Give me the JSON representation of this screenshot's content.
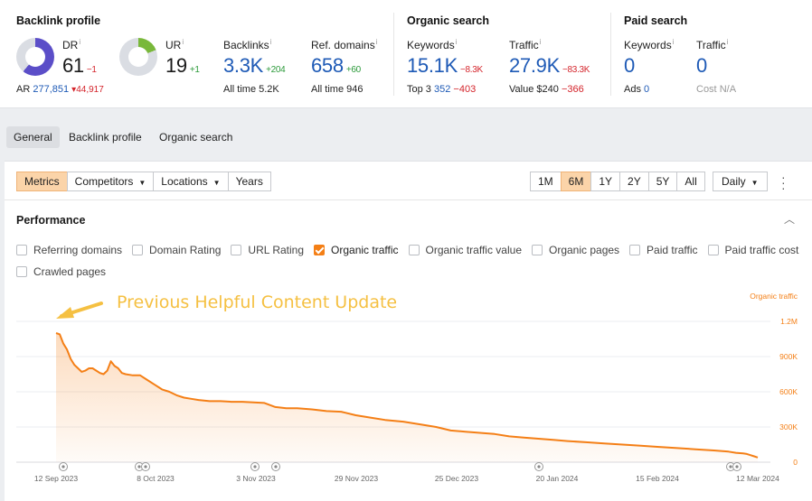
{
  "backlink_profile": {
    "title": "Backlink profile",
    "dr": {
      "label": "DR",
      "value": "61",
      "delta": "−1",
      "fill": 0.61
    },
    "ur": {
      "label": "UR",
      "value": "19",
      "delta": "+1",
      "fill": 0.19
    },
    "ar": {
      "label": "AR",
      "value": "277,851",
      "delta": "▾44,917"
    },
    "backlinks": {
      "label": "Backlinks",
      "value": "3.3K",
      "delta": "+204",
      "sub_label": "All time",
      "sub_value": "5.2K"
    },
    "ref_domains": {
      "label": "Ref. domains",
      "value": "658",
      "delta": "+60",
      "sub_label": "All time",
      "sub_value": "946"
    }
  },
  "organic_search": {
    "title": "Organic search",
    "keywords": {
      "label": "Keywords",
      "value": "15.1K",
      "delta": "−8.3K",
      "sub_label": "Top 3",
      "sub_value": "352",
      "sub_delta": "−403"
    },
    "traffic": {
      "label": "Traffic",
      "value": "27.9K",
      "delta": "−83.3K",
      "sub_label": "Value",
      "sub_value": "$240",
      "sub_delta": "−366"
    }
  },
  "paid_search": {
    "title": "Paid search",
    "keywords": {
      "label": "Keywords",
      "value": "0",
      "sub_label": "Ads",
      "sub_value": "0"
    },
    "traffic": {
      "label": "Traffic",
      "value": "0",
      "sub_label": "Cost",
      "sub_value": "N/A"
    }
  },
  "tabs": [
    "General",
    "Backlink profile",
    "Organic search"
  ],
  "toolbar": {
    "left": [
      "Metrics",
      "Competitors",
      "Locations",
      "Years"
    ],
    "ranges": [
      "1M",
      "6M",
      "1Y",
      "2Y",
      "5Y",
      "All"
    ],
    "interval": "Daily"
  },
  "performance": {
    "title": "Performance",
    "checkboxes": [
      {
        "label": "Referring domains",
        "checked": false
      },
      {
        "label": "Domain Rating",
        "checked": false
      },
      {
        "label": "URL Rating",
        "checked": false
      },
      {
        "label": "Organic traffic",
        "checked": true
      },
      {
        "label": "Organic traffic value",
        "checked": false
      },
      {
        "label": "Organic pages",
        "checked": false
      },
      {
        "label": "Paid traffic",
        "checked": false
      },
      {
        "label": "Paid traffic cost",
        "checked": false
      },
      {
        "label": "Crawled pages",
        "checked": false
      }
    ]
  },
  "colors": {
    "accent": "#f47f16",
    "annotation": "#f5c042",
    "blue": "#1e5ab6",
    "neg": "#d4242b",
    "pos": "#2c9a3a"
  },
  "chart_data": {
    "type": "area",
    "series": [
      {
        "name": "Organic traffic",
        "color": "#f47f16"
      }
    ],
    "annotation_text": "Previous Helpful Content Update",
    "x_ticks": [
      "12 Sep 2023",
      "8 Oct 2023",
      "3 Nov 2023",
      "29 Nov 2023",
      "25 Dec 2023",
      "20 Jan 2024",
      "15 Feb 2024",
      "12 Mar 2024"
    ],
    "y_ticks": [
      "1.2M",
      "900K",
      "600K",
      "300K",
      "0"
    ],
    "y_range": [
      0,
      1200000
    ],
    "points": [
      [
        0,
        1100000
      ],
      [
        1,
        1090000
      ],
      [
        2,
        1010000
      ],
      [
        3,
        960000
      ],
      [
        4,
        880000
      ],
      [
        5,
        830000
      ],
      [
        6,
        800000
      ],
      [
        7,
        770000
      ],
      [
        8,
        780000
      ],
      [
        9,
        800000
      ],
      [
        10,
        800000
      ],
      [
        11,
        780000
      ],
      [
        12,
        760000
      ],
      [
        13,
        750000
      ],
      [
        14,
        780000
      ],
      [
        15,
        860000
      ],
      [
        16,
        820000
      ],
      [
        17,
        800000
      ],
      [
        18,
        760000
      ],
      [
        19,
        750000
      ],
      [
        21,
        740000
      ],
      [
        23,
        740000
      ],
      [
        25,
        700000
      ],
      [
        27,
        660000
      ],
      [
        29,
        620000
      ],
      [
        31,
        600000
      ],
      [
        33,
        570000
      ],
      [
        35,
        550000
      ],
      [
        37,
        540000
      ],
      [
        39,
        530000
      ],
      [
        42,
        520000
      ],
      [
        45,
        520000
      ],
      [
        48,
        515000
      ],
      [
        51,
        515000
      ],
      [
        54,
        510000
      ],
      [
        57,
        505000
      ],
      [
        60,
        470000
      ],
      [
        63,
        460000
      ],
      [
        66,
        460000
      ],
      [
        70,
        450000
      ],
      [
        74,
        435000
      ],
      [
        78,
        430000
      ],
      [
        82,
        400000
      ],
      [
        86,
        380000
      ],
      [
        90,
        360000
      ],
      [
        95,
        345000
      ],
      [
        100,
        320000
      ],
      [
        104,
        300000
      ],
      [
        108,
        270000
      ],
      [
        112,
        260000
      ],
      [
        116,
        250000
      ],
      [
        120,
        240000
      ],
      [
        124,
        220000
      ],
      [
        128,
        210000
      ],
      [
        132,
        200000
      ],
      [
        136,
        190000
      ],
      [
        140,
        180000
      ],
      [
        145,
        170000
      ],
      [
        150,
        160000
      ],
      [
        155,
        150000
      ],
      [
        160,
        140000
      ],
      [
        165,
        130000
      ],
      [
        170,
        120000
      ],
      [
        175,
        110000
      ],
      [
        180,
        100000
      ],
      [
        184,
        90000
      ],
      [
        186,
        80000
      ],
      [
        188,
        75000
      ],
      [
        189,
        70000
      ],
      [
        190,
        60000
      ],
      [
        191,
        50000
      ],
      [
        192,
        40000
      ]
    ],
    "legend": "Organic traffic"
  }
}
